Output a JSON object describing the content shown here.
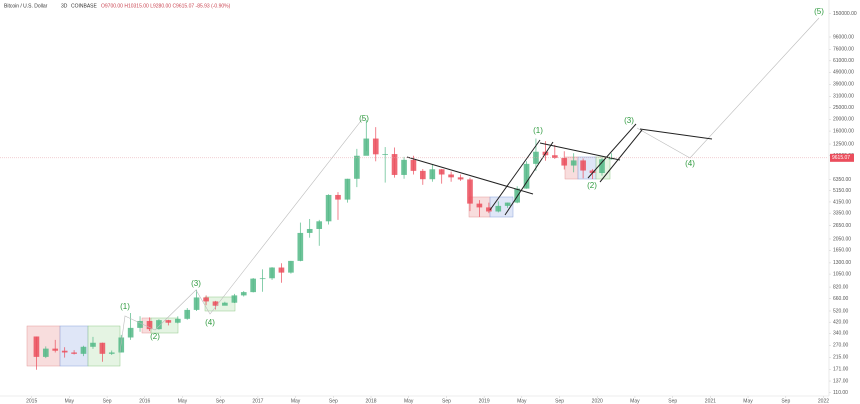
{
  "chart_data": {
    "type": "candlestick",
    "title": "Bitcoin / U.S. Dollar",
    "interval": "3D",
    "exchange": "COINBASE",
    "ohlc_text": "O9700.00 H10315.00 L9280.00 C9615.07 -85.93 (-0.90%)",
    "last_price": 9615.07,
    "last_price_label": "9615.07",
    "up_color": "#53b987",
    "down_color": "#eb4d5c",
    "label_color": "#2e9a3e",
    "log_scale": true,
    "grid": false,
    "annotations": [
      "(1)",
      "(2)",
      "(3)",
      "(4)",
      "(5)",
      "(1)",
      "(2)",
      "(3)",
      "(4)",
      "(5)"
    ],
    "x": [
      2015.042,
      2015.125,
      2015.208,
      2015.292,
      2015.375,
      2015.458,
      2015.542,
      2015.625,
      2015.708,
      2015.792,
      2015.875,
      2015.958,
      2016.042,
      2016.125,
      2016.208,
      2016.292,
      2016.375,
      2016.458,
      2016.542,
      2016.625,
      2016.708,
      2016.792,
      2016.875,
      2016.958,
      2017.042,
      2017.125,
      2017.208,
      2017.292,
      2017.375,
      2017.458,
      2017.542,
      2017.625,
      2017.708,
      2017.792,
      2017.875,
      2017.958,
      2018.042,
      2018.125,
      2018.208,
      2018.292,
      2018.375,
      2018.458,
      2018.542,
      2018.625,
      2018.708,
      2018.792,
      2018.875,
      2018.958,
      2019.042,
      2019.125,
      2019.208,
      2019.292,
      2019.375,
      2019.458,
      2019.542,
      2019.625,
      2019.708,
      2019.792,
      2019.875,
      2019.958,
      2020.042,
      2020.125
    ],
    "open": [
      320,
      217,
      254,
      244,
      236,
      230,
      263,
      284,
      230,
      236,
      314,
      377,
      430,
      368,
      437,
      416,
      448,
      531,
      673,
      624,
      575,
      609,
      700,
      745,
      963,
      970,
      1190,
      1080,
      1350,
      2300,
      2480,
      2870,
      4740,
      4340,
      6450,
      10000,
      13880,
      10280,
      10330,
      6940,
      9250,
      7500,
      6400,
      7730,
      7000,
      6630,
      6370,
      4020,
      3740,
      3460,
      3850,
      4100,
      5350,
      8570,
      10800,
      10100,
      9600,
      8300,
      9150,
      7550,
      7200,
      9350
    ],
    "high": [
      320,
      265,
      300,
      261,
      247,
      268,
      318,
      285,
      245,
      330,
      500,
      470,
      460,
      445,
      440,
      470,
      550,
      780,
      700,
      630,
      620,
      720,
      760,
      975,
      1150,
      1200,
      1290,
      1350,
      2800,
      3000,
      2950,
      4800,
      5000,
      6450,
      11400,
      19700,
      17250,
      11800,
      11700,
      9800,
      10000,
      7770,
      8500,
      7760,
      7400,
      7000,
      6590,
      4300,
      4100,
      4200,
      4100,
      5600,
      9000,
      13900,
      13200,
      12300,
      10900,
      10500,
      9500,
      7750,
      9600,
      10500
    ],
    "low": [
      170,
      212,
      236,
      214,
      227,
      220,
      253,
      198,
      225,
      236,
      300,
      350,
      355,
      365,
      395,
      410,
      440,
      520,
      580,
      535,
      590,
      605,
      685,
      740,
      750,
      940,
      890,
      1060,
      1340,
      2100,
      1800,
      2700,
      2950,
      4100,
      5500,
      10900,
      9000,
      6000,
      6600,
      6450,
      7000,
      5750,
      6100,
      5880,
      6100,
      6200,
      3480,
      3120,
      3350,
      3400,
      3700,
      4050,
      5330,
      7500,
      9100,
      9400,
      7700,
      7300,
      6500,
      6430,
      6850,
      9280
    ],
    "close": [
      217,
      254,
      244,
      236,
      230,
      263,
      284,
      230,
      236,
      314,
      377,
      430,
      368,
      437,
      416,
      448,
      531,
      673,
      624,
      575,
      609,
      700,
      745,
      963,
      970,
      1190,
      1080,
      1350,
      2300,
      2480,
      2870,
      4740,
      4340,
      6450,
      10000,
      13880,
      10280,
      10330,
      6940,
      9250,
      7500,
      6400,
      7730,
      7000,
      6630,
      6370,
      4020,
      3740,
      3460,
      3850,
      4100,
      5350,
      8570,
      10800,
      10100,
      9600,
      8300,
      9150,
      7550,
      7200,
      9350,
      9615
    ],
    "xlim": [
      2014.72,
      2022.04
    ],
    "xticks": [
      2015,
      {
        "value": 2015.333,
        "label": "May"
      },
      {
        "value": 2015.667,
        "label": "Sep"
      },
      2016,
      {
        "value": 2016.333,
        "label": "May"
      },
      {
        "value": 2016.667,
        "label": "Sep"
      },
      2017,
      {
        "value": 2017.333,
        "label": "May"
      },
      {
        "value": 2017.667,
        "label": "Sep"
      },
      2018,
      {
        "value": 2018.333,
        "label": "May"
      },
      {
        "value": 2018.667,
        "label": "Sep"
      },
      2019,
      {
        "value": 2019.333,
        "label": "May"
      },
      {
        "value": 2019.667,
        "label": "Sep"
      },
      2020,
      {
        "value": 2020.333,
        "label": "May"
      },
      {
        "value": 2020.667,
        "label": "Sep"
      },
      2021,
      {
        "value": 2021.333,
        "label": "May"
      },
      {
        "value": 2021.667,
        "label": "Sep"
      },
      2022
    ],
    "ylim": [
      105,
      180000
    ],
    "yticks": [
      {
        "value": 150000,
        "label": "150000.00"
      },
      {
        "value": 96000,
        "label": "96000.00"
      },
      {
        "value": 76000,
        "label": "76000.00"
      },
      {
        "value": 61000,
        "label": "61000.00"
      },
      {
        "value": 49000,
        "label": "49000.00"
      },
      {
        "value": 39000,
        "label": "39000.00"
      },
      {
        "value": 31000,
        "label": "31000.00"
      },
      {
        "value": 25000,
        "label": "25000.00"
      },
      {
        "value": 20000,
        "label": "20000.00"
      },
      {
        "value": 16000,
        "label": "16000.00"
      },
      {
        "value": 12500,
        "label": "12500.00"
      },
      {
        "value": 10000,
        "label": "10000.00"
      },
      {
        "value": 6350,
        "label": "6350.00"
      },
      {
        "value": 5150,
        "label": "5150.00"
      },
      {
        "value": 4150,
        "label": "4150.00"
      },
      {
        "value": 3350,
        "label": "3350.00"
      },
      {
        "value": 2650,
        "label": "2650.00"
      },
      {
        "value": 2050,
        "label": "2050.00"
      },
      {
        "value": 1650,
        "label": "1650.00"
      },
      {
        "value": 1300,
        "label": "1300.00"
      },
      {
        "value": 1050,
        "label": "1050.00"
      },
      {
        "value": 820,
        "label": "820.00"
      },
      {
        "value": 660,
        "label": "660.00"
      },
      {
        "value": 520,
        "label": "520.00"
      },
      {
        "value": 420,
        "label": "420.00"
      },
      {
        "value": 340,
        "label": "340.00"
      },
      {
        "value": 270,
        "label": "270.00"
      },
      {
        "value": 215,
        "label": "215.00"
      },
      {
        "value": 171,
        "label": "171.00"
      },
      {
        "value": 137,
        "label": "137.00"
      },
      {
        "value": 110,
        "label": "110.00"
      }
    ]
  }
}
